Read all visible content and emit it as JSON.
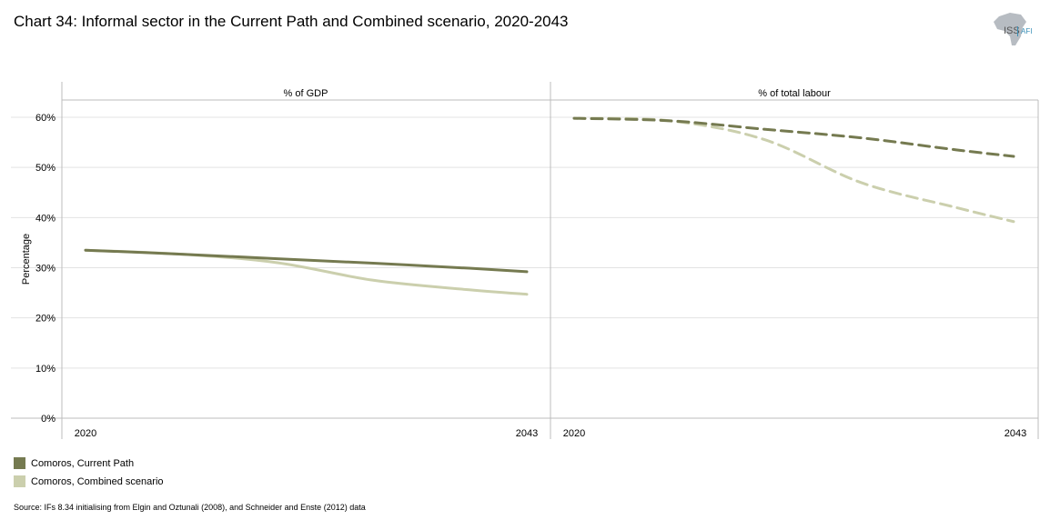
{
  "title": "Chart 34: Informal sector in the Current Path and Combined scenario, 2020-2043",
  "logo": {
    "iss": "ISS",
    "afi": "AFI"
  },
  "colors": {
    "current_path": "#757a50",
    "combined": "#cbcfad",
    "grid": "#e3e3e3",
    "axis": "#bcbcbc"
  },
  "legend": [
    {
      "label": "Comoros, Current Path",
      "color": "#757a50"
    },
    {
      "label": "Comoros, Combined scenario",
      "color": "#cbcfad"
    }
  ],
  "source": "Source: IFs 8.34 initialising from Elgin and Oztunali (2008), and Schneider and Enste (2012) data",
  "chart_data": {
    "type": "line",
    "ylabel": "Percentage",
    "ylim": [
      0,
      60
    ],
    "yticks": [
      0,
      10,
      20,
      30,
      40,
      50,
      60
    ],
    "ytick_labels": [
      "0%",
      "10%",
      "20%",
      "30%",
      "40%",
      "50%",
      "60%"
    ],
    "x": [
      2020,
      2025,
      2030,
      2035,
      2040,
      2043
    ],
    "xtick_labels": [
      "2020",
      "2043"
    ],
    "panels": [
      {
        "title": "% of GDP",
        "line_style": "solid",
        "series": [
          {
            "name": "Comoros, Current Path",
            "values": [
              33.5,
              32.7,
              31.8,
              30.9,
              29.9,
              29.2
            ]
          },
          {
            "name": "Comoros, Combined scenario",
            "values": [
              33.5,
              32.7,
              31.0,
              27.5,
              25.6,
              24.7
            ]
          }
        ]
      },
      {
        "title": "% of total labour",
        "line_style": "dashed",
        "series": [
          {
            "name": "Comoros, Current Path",
            "values": [
              59.8,
              59.3,
              57.6,
              55.9,
              53.5,
              52.2
            ]
          },
          {
            "name": "Comoros, Combined scenario",
            "values": [
              59.8,
              59.3,
              55.5,
              47.0,
              42.0,
              39.2
            ]
          }
        ]
      }
    ]
  }
}
